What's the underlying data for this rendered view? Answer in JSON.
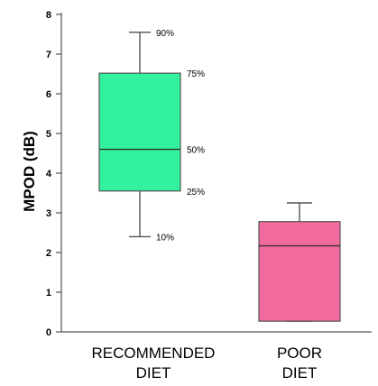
{
  "chart_data": {
    "type": "box",
    "ylabel": "MPOD (dB)",
    "xlabel": "",
    "title": "",
    "ylim": [
      0,
      8
    ],
    "yticks": [
      "0",
      "1",
      "2",
      "3",
      "4",
      "5",
      "6",
      "7",
      "8"
    ],
    "grid": false,
    "categories": [
      {
        "line1": "RECOMMENDED",
        "line2": "DIET"
      },
      {
        "line1": "POOR",
        "line2": "DIET"
      }
    ],
    "boxes": [
      {
        "p10": 2.4,
        "p25": 3.55,
        "p50": 4.6,
        "p75": 6.52,
        "p90": 7.55
      },
      {
        "p10": 0.27,
        "p25": 0.27,
        "p50": 2.17,
        "p75": 2.78,
        "p90": 3.25
      }
    ],
    "percentile_labels": [
      "90%",
      "75%",
      "50%",
      "25%",
      "10%"
    ],
    "colors": {
      "box1": "#33f29e",
      "box2": "#f26b9e",
      "line": "#555555"
    }
  }
}
